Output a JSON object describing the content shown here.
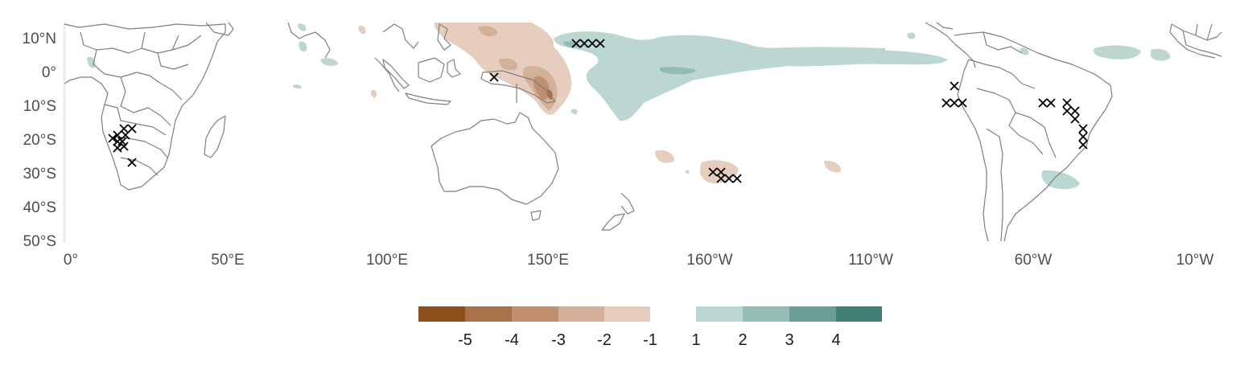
{
  "map": {
    "y_axis_labels": [
      "10°N",
      "0°",
      "10°S",
      "20°S",
      "30°S",
      "40°S",
      "50°S"
    ],
    "x_axis_labels": [
      "0°",
      "50°E",
      "100°E",
      "150°E",
      "160°W",
      "110°W",
      "60°W",
      "10°W"
    ],
    "lat_range": [
      15,
      -50
    ],
    "lon_range": [
      0,
      360
    ],
    "land_outline_color": "#7f7f7f",
    "significance_marker": "×"
  },
  "legend": {
    "negative": {
      "labels": [
        "-5",
        "-4",
        "-3",
        "-2",
        "-1"
      ],
      "colors": [
        "#8c511a",
        "#a8714a",
        "#bf8f6f",
        "#d3b098",
        "#e6cdbd"
      ]
    },
    "positive": {
      "labels": [
        "1",
        "2",
        "3",
        "4"
      ],
      "colors": [
        "#bcd6d1",
        "#94bcb5",
        "#6a9f97",
        "#3f7f75"
      ]
    }
  }
}
